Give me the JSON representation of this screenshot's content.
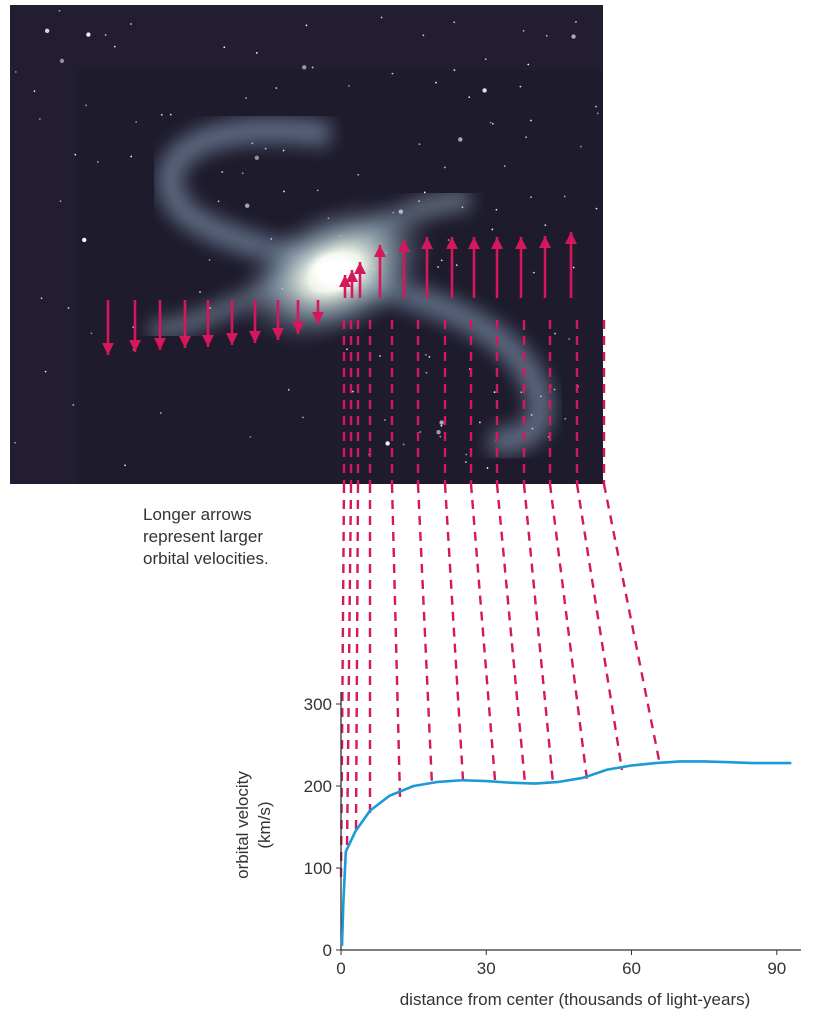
{
  "chart_data": {
    "type": "line",
    "annotation": [
      "Longer arrows",
      "represent larger",
      "orbital velocities."
    ],
    "xlabel": "distance from center (thousands of light-years)",
    "ylabel": [
      "orbital velocity",
      "(km/s)"
    ],
    "xlim": [
      0,
      95
    ],
    "xticks": [
      0,
      30,
      60,
      90
    ],
    "ylim": [
      0,
      300
    ],
    "yticks": [
      0,
      100,
      200,
      300
    ],
    "series": [
      {
        "color": "#1a9ad6",
        "x": [
          0.2,
          0.5,
          1,
          3,
          6,
          10,
          15,
          20,
          25,
          30,
          35,
          40,
          45,
          50,
          55,
          60,
          65,
          70,
          75,
          80,
          85,
          90,
          93
        ],
        "values": [
          5,
          60,
          120,
          145,
          170,
          188,
          200,
          205,
          207,
          206,
          204,
          203,
          205,
          210,
          220,
          225,
          228,
          230,
          230,
          229,
          228,
          228,
          228
        ]
      }
    ]
  }
}
